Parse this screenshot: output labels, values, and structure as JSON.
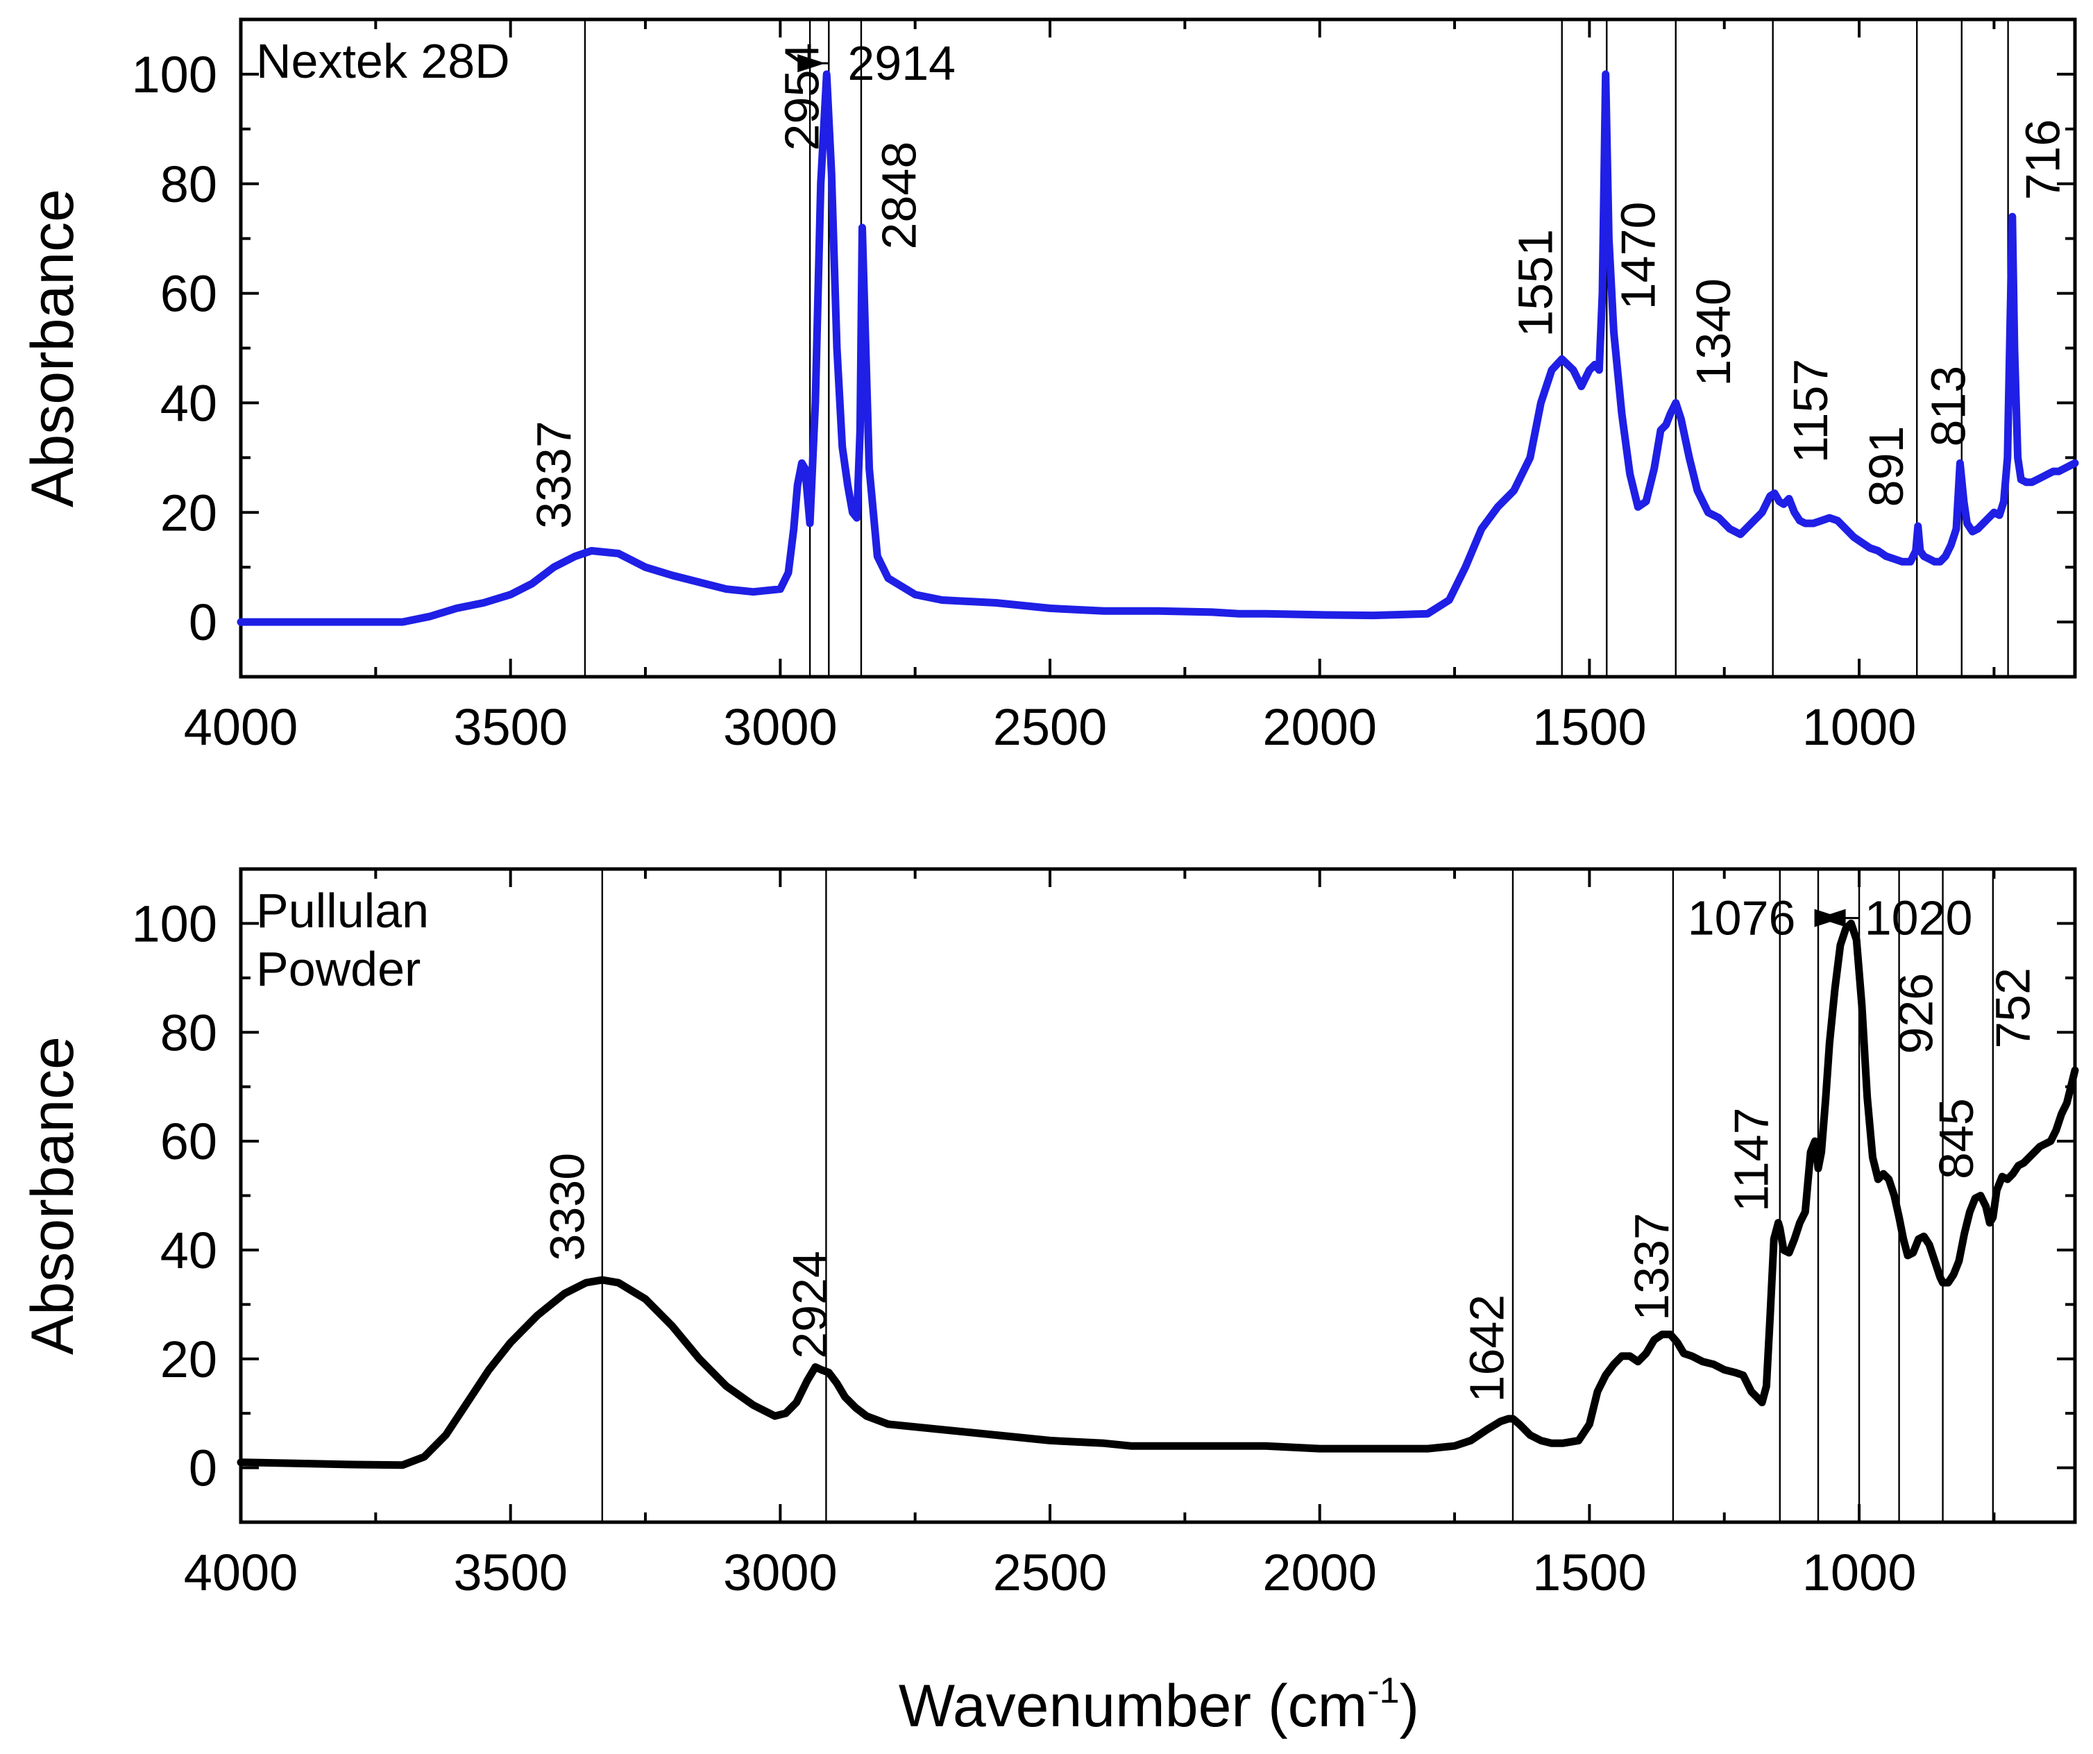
{
  "figure": {
    "shared_xlabel": "Wavenumber (cm",
    "shared_xlabel_sup": "-1",
    "shared_xlabel_close": ")"
  },
  "chart_data": [
    {
      "type": "line",
      "label_lines": [
        "Nextek 28D"
      ],
      "ylabel": "Absorbance",
      "xlabel": "",
      "xlim": [
        4000,
        600
      ],
      "ylim": [
        -10,
        110
      ],
      "xticks": [
        4000,
        3500,
        3000,
        2500,
        2000,
        1500,
        1000
      ],
      "yticks": [
        0,
        20,
        40,
        60,
        80,
        100
      ],
      "series": [
        {
          "name": "Nextek 28D",
          "color": "#1f1fe6",
          "x": [
            4000,
            3800,
            3700,
            3650,
            3600,
            3550,
            3500,
            3460,
            3420,
            3380,
            3350,
            3300,
            3250,
            3200,
            3100,
            3050,
            3000,
            2985,
            2975,
            2968,
            2960,
            2954,
            2945,
            2935,
            2925,
            2914,
            2905,
            2895,
            2885,
            2875,
            2866,
            2858,
            2852,
            2848,
            2843,
            2835,
            2820,
            2800,
            2750,
            2700,
            2600,
            2500,
            2400,
            2300,
            2200,
            2150,
            2100,
            2000,
            1900,
            1800,
            1760,
            1730,
            1700,
            1670,
            1640,
            1610,
            1590,
            1570,
            1551,
            1530,
            1515,
            1500,
            1490,
            1482,
            1476,
            1470,
            1464,
            1455,
            1440,
            1425,
            1410,
            1395,
            1380,
            1368,
            1358,
            1350,
            1340,
            1330,
            1315,
            1300,
            1280,
            1260,
            1240,
            1220,
            1200,
            1180,
            1165,
            1157,
            1148,
            1140,
            1130,
            1120,
            1110,
            1100,
            1085,
            1070,
            1055,
            1040,
            1025,
            1010,
            995,
            980,
            965,
            950,
            935,
            920,
            905,
            895,
            891,
            887,
            880,
            870,
            860,
            850,
            840,
            830,
            820,
            813,
            806,
            800,
            790,
            780,
            770,
            760,
            750,
            740,
            732,
            725,
            720,
            716,
            712,
            706,
            700,
            690,
            680,
            670,
            660,
            650,
            640,
            630,
            620,
            610,
            600
          ],
          "y": [
            0,
            0,
            0,
            1,
            2.5,
            3.5,
            5,
            7,
            10,
            12,
            13,
            12.5,
            10,
            8.5,
            6,
            5.5,
            6,
            9,
            17,
            25,
            29,
            28,
            18,
            40,
            80,
            100,
            82,
            50,
            32,
            25,
            20,
            19,
            35,
            72,
            55,
            28,
            12,
            8,
            5,
            4,
            3.5,
            2.5,
            2,
            2,
            1.8,
            1.5,
            1.5,
            1.3,
            1.2,
            1.5,
            4,
            10,
            17,
            21,
            24,
            30,
            40,
            46,
            48,
            46,
            43,
            46,
            47,
            46,
            60,
            100,
            70,
            53,
            38,
            27,
            21,
            22,
            28,
            35,
            36,
            38,
            40,
            37,
            30,
            24,
            20,
            19,
            17,
            16,
            18,
            20,
            23,
            23.5,
            22,
            21.5,
            22.5,
            20,
            18.5,
            18,
            18,
            18.5,
            19,
            18.5,
            17,
            15.5,
            14.5,
            13.5,
            13,
            12,
            11.5,
            11,
            11,
            13,
            17.5,
            13,
            12,
            11.5,
            11,
            11,
            12,
            14,
            17,
            29,
            22,
            18,
            16.5,
            17,
            18,
            19,
            20,
            19.5,
            22,
            30,
            55,
            74,
            50,
            30,
            26,
            25.5,
            25.5,
            26,
            26.5,
            27,
            27.5,
            27.5,
            28,
            28.5,
            29
          ]
        }
      ],
      "peaks": [
        {
          "label": "3337",
          "x": 3362,
          "label_x": 3420,
          "label_y_data": 17
        },
        {
          "label": "2954",
          "x": 2945,
          "label_x": 2960,
          "label_y_data": 86
        },
        {
          "label": "2914",
          "x": 2910,
          "label_x": 2775,
          "label_y_data": 102,
          "arrow": "right"
        },
        {
          "label": "2848",
          "x": 2850,
          "label_x": 2780,
          "label_y_data": 68
        },
        {
          "label": "1551",
          "x": 1551,
          "label_x": 1600,
          "label_y_data": 52
        },
        {
          "label": "1470",
          "x": 1468,
          "label_x": 1410,
          "label_y_data": 57
        },
        {
          "label": "1340",
          "x": 1340,
          "label_x": 1270,
          "label_y_data": 43
        },
        {
          "label": "1157",
          "x": 1160,
          "label_x": 1090,
          "label_y_data": 29
        },
        {
          "label": "891",
          "x": 893,
          "label_x": 950,
          "label_y_data": 21
        },
        {
          "label": "813",
          "x": 810,
          "label_x": 835,
          "label_y_data": 32
        },
        {
          "label": "716",
          "x": 724,
          "label_x": 660,
          "label_y_data": 77
        }
      ]
    },
    {
      "type": "line",
      "label_lines": [
        "Pullulan",
        "Powder"
      ],
      "ylabel": "Absorbance",
      "xlabel": "",
      "xlim": [
        4000,
        600
      ],
      "ylim": [
        -10,
        110
      ],
      "xticks": [
        4000,
        3500,
        3000,
        2500,
        2000,
        1500,
        1000
      ],
      "yticks": [
        0,
        20,
        40,
        60,
        80,
        100
      ],
      "series": [
        {
          "name": "Pullulan Powder",
          "color": "#000000",
          "x": [
            4000,
            3900,
            3800,
            3700,
            3660,
            3620,
            3580,
            3540,
            3500,
            3450,
            3400,
            3360,
            3330,
            3300,
            3250,
            3200,
            3150,
            3100,
            3050,
            3010,
            2990,
            2970,
            2950,
            2935,
            2924,
            2910,
            2895,
            2880,
            2860,
            2840,
            2800,
            2700,
            2600,
            2500,
            2400,
            2350,
            2300,
            2200,
            2100,
            2000,
            1900,
            1800,
            1750,
            1720,
            1690,
            1665,
            1650,
            1642,
            1630,
            1610,
            1590,
            1570,
            1550,
            1520,
            1500,
            1485,
            1470,
            1455,
            1440,
            1425,
            1410,
            1395,
            1380,
            1365,
            1350,
            1337,
            1325,
            1310,
            1290,
            1270,
            1250,
            1230,
            1215,
            1200,
            1190,
            1180,
            1172,
            1165,
            1158,
            1150,
            1147,
            1140,
            1130,
            1120,
            1110,
            1100,
            1090,
            1082,
            1076,
            1070,
            1062,
            1055,
            1045,
            1035,
            1025,
            1015,
            1005,
            995,
            985,
            975,
            965,
            955,
            945,
            935,
            926,
            918,
            910,
            900,
            890,
            880,
            870,
            860,
            850,
            845,
            835,
            825,
            815,
            805,
            795,
            785,
            775,
            765,
            758,
            752,
            745,
            735,
            725,
            715,
            705,
            695,
            685,
            675,
            665,
            655,
            645,
            635,
            625,
            615,
            605,
            600
          ],
          "y": [
            1,
            0.8,
            0.6,
            0.5,
            2,
            6,
            12,
            18,
            23,
            28,
            32,
            34,
            34.5,
            34,
            31,
            26,
            20,
            15,
            11.5,
            9.5,
            10,
            12,
            16,
            18.5,
            18,
            17.5,
            15.5,
            13,
            11,
            9.5,
            8,
            7,
            6,
            5,
            4.5,
            4,
            4,
            4,
            4,
            3.5,
            3.5,
            3.5,
            4,
            5,
            7,
            8.5,
            9,
            9,
            8,
            6,
            5,
            4.5,
            4.5,
            5,
            8,
            14,
            17,
            19,
            20.5,
            20.5,
            19.5,
            21,
            23.5,
            24.5,
            24.5,
            23,
            21,
            20.5,
            19.5,
            19,
            18,
            17.5,
            17,
            14,
            13,
            12,
            15,
            28,
            42,
            45,
            44,
            40,
            39.5,
            42,
            45,
            47,
            58,
            60,
            55,
            58,
            68,
            78,
            88,
            96,
            99,
            100,
            97,
            85,
            68,
            57,
            53,
            54,
            53,
            50,
            46,
            42,
            39,
            39.5,
            42,
            42.5,
            41,
            38,
            35,
            34,
            34,
            35.5,
            38,
            43,
            47,
            49.5,
            50,
            48,
            45,
            46,
            51,
            53.5,
            53,
            54,
            55.5,
            56,
            57,
            58,
            59,
            59.5,
            60,
            62,
            65,
            67,
            71,
            73
          ]
        }
      ],
      "peaks": [
        {
          "label": "3330",
          "x": 3330,
          "label_x": 3395,
          "label_y_data": 38
        },
        {
          "label": "2924",
          "x": 2915,
          "label_x": 2945,
          "label_y_data": 20
        },
        {
          "label": "1642",
          "x": 1642,
          "label_x": 1690,
          "label_y_data": 12
        },
        {
          "label": "1337",
          "x": 1345,
          "label_x": 1385,
          "label_y_data": 27
        },
        {
          "label": "1147",
          "x": 1147,
          "label_x": 1200,
          "label_y_data": 47
        },
        {
          "label": "1076",
          "x": 1076,
          "label_x": 1218,
          "label_y_data": 101,
          "arrow": "left",
          "horizontal": true
        },
        {
          "label": "1020",
          "x": 1000,
          "label_x": 890,
          "label_y_data": 101,
          "arrow": "right",
          "horizontal": true
        },
        {
          "label": "926",
          "x": 926,
          "label_x": 895,
          "label_y_data": 76
        },
        {
          "label": "845",
          "x": 845,
          "label_x": 820,
          "label_y_data": 53
        },
        {
          "label": "752",
          "x": 752,
          "label_x": 715,
          "label_y_data": 77
        }
      ]
    }
  ]
}
